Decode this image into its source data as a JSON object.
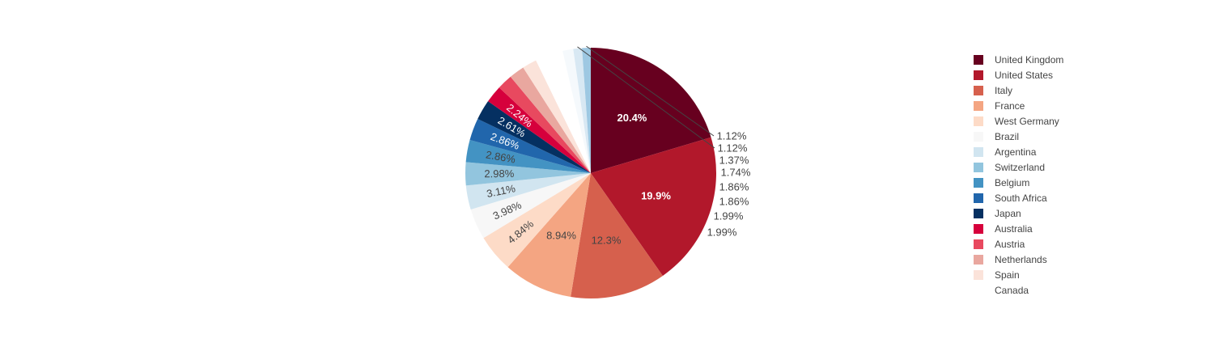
{
  "chart_data": {
    "type": "pie",
    "title": "",
    "direction": "clockwise",
    "sort": "descending",
    "legend_position": "right",
    "slices": [
      {
        "label": "United Kingdom",
        "value": 20.4,
        "text": "20.4%",
        "color": "#67001f",
        "text_color": "#ffffff"
      },
      {
        "label": "United States",
        "value": 19.9,
        "text": "19.9%",
        "color": "#b2182b",
        "text_color": "#ffffff"
      },
      {
        "label": "Italy",
        "value": 12.3,
        "text": "12.3%",
        "color": "#d6604d",
        "text_color": "#444444"
      },
      {
        "label": "France",
        "value": 8.94,
        "text": "8.94%",
        "color": "#f4a582",
        "text_color": "#444444"
      },
      {
        "label": "West Germany",
        "value": 4.84,
        "text": "4.84%",
        "color": "#fddbc7",
        "text_color": "#444444"
      },
      {
        "label": "Brazil",
        "value": 3.98,
        "text": "3.98%",
        "color": "#f7f7f7",
        "text_color": "#444444"
      },
      {
        "label": "Argentina",
        "value": 3.11,
        "text": "3.11%",
        "color": "#d1e5f0",
        "text_color": "#444444"
      },
      {
        "label": "Switzerland",
        "value": 2.98,
        "text": "2.98%",
        "color": "#92c5de",
        "text_color": "#444444"
      },
      {
        "label": "Belgium",
        "value": 2.86,
        "text": "2.86%",
        "color": "#4393c3",
        "text_color": "#444444"
      },
      {
        "label": "South Africa",
        "value": 2.86,
        "text": "2.86%",
        "color": "#2166ac",
        "text_color": "#ffffff"
      },
      {
        "label": "Japan",
        "value": 2.61,
        "text": "2.61%",
        "color": "#053061",
        "text_color": "#ffffff"
      },
      {
        "label": "Australia",
        "value": 2.24,
        "text": "2.24%",
        "color": "#d6003c",
        "text_color": "#ffffff"
      },
      {
        "label": "Austria",
        "value": 1.99,
        "text": "1.99%",
        "color": "#e8495f",
        "text_color": "#444444"
      },
      {
        "label": "Netherlands",
        "value": 1.99,
        "text": "1.99%",
        "color": "#e9a79f",
        "text_color": "#444444"
      },
      {
        "label": "Spain",
        "value": 1.86,
        "text": "1.86%",
        "color": "#fbe3da",
        "text_color": "#444444"
      },
      {
        "label": "Canada",
        "value": 1.86,
        "text": "1.86%",
        "color": "#ffffff",
        "text_color": "#444444"
      },
      {
        "value": 1.74,
        "text": "1.74%",
        "color": "#ffffff",
        "text_color": "#444444"
      },
      {
        "value": 1.37,
        "text": "1.37%",
        "color": "#f5f9fc",
        "text_color": "#444444"
      },
      {
        "value": 1.12,
        "text": "1.12%",
        "color": "#d8e8f3",
        "text_color": "#444444"
      },
      {
        "value": 1.12,
        "text": "1.12%",
        "color": "#9ec8e2",
        "text_color": "#444444"
      }
    ]
  }
}
